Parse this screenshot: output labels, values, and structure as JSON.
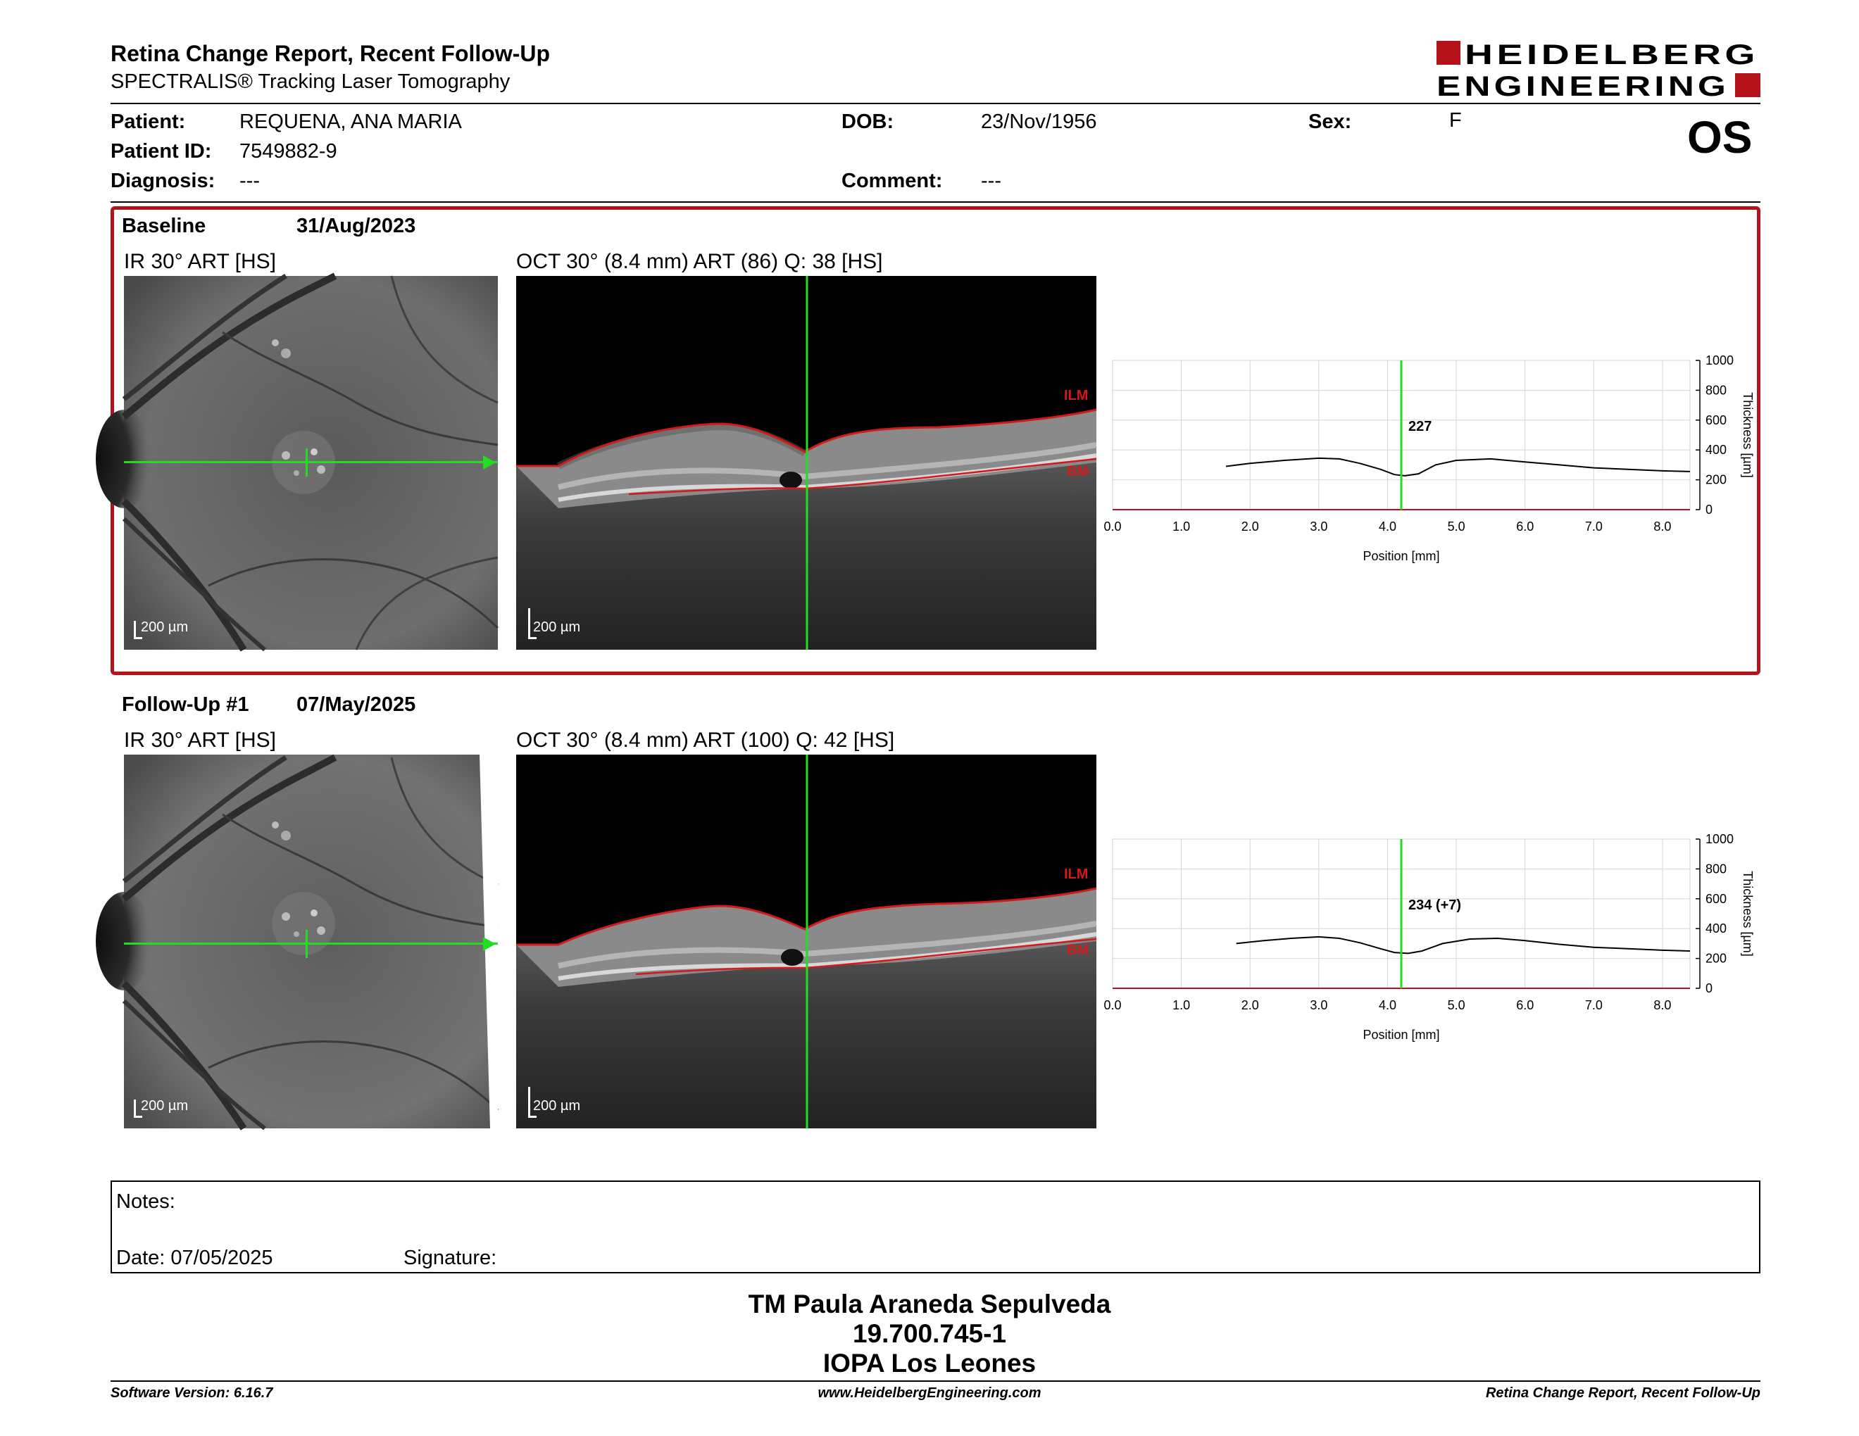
{
  "header": {
    "title": "Retina Change Report, Recent Follow-Up",
    "subtitle": "SPECTRALIS® Tracking Laser Tomography",
    "logo_line1": "HEIDELBERG",
    "logo_line2": "ENGINEERING",
    "eye": "OS"
  },
  "patient": {
    "patient_label": "Patient:",
    "patient_value": "REQUENA, ANA MARIA",
    "id_label": "Patient ID:",
    "id_value": "7549882-9",
    "diagnosis_label": "Diagnosis:",
    "diagnosis_value": "---",
    "dob_label": "DOB:",
    "dob_value": "23/Nov/1956",
    "comment_label": "Comment:",
    "comment_value": "---",
    "sex_label": "Sex:",
    "sex_value": "F"
  },
  "baseline": {
    "name": "Baseline",
    "date": "31/Aug/2023",
    "ir_label": "IR 30° ART [HS]",
    "oct_label": "OCT 30° (8.4 mm) ART (86) Q: 38 [HS]",
    "ir_scale": "200 µm",
    "oct_scale": "200 µm",
    "ilm_label": "ILM",
    "bm_label": "BM",
    "thickness_label": "227"
  },
  "followup": {
    "name": "Follow-Up #1",
    "date": "07/May/2025",
    "ir_label": "IR 30° ART [HS]",
    "oct_label": "OCT 30° (8.4 mm) ART (100) Q: 42 [HS]",
    "ir_scale": "200 µm",
    "oct_scale": "200 µm",
    "ilm_label": "ILM",
    "bm_label": "BM",
    "thickness_label": "234 (+7)"
  },
  "chart_data": [
    {
      "type": "line",
      "title": "",
      "xlabel": "Position [mm]",
      "ylabel": "Thickness [µm]",
      "xlim": [
        0,
        8.4
      ],
      "ylim": [
        0,
        1000
      ],
      "xticks": [
        "0.0",
        "1.0",
        "2.0",
        "3.0",
        "4.0",
        "5.0",
        "6.0",
        "7.0",
        "8.0"
      ],
      "yticks": [
        "0",
        "200",
        "400",
        "600",
        "800",
        "1000"
      ],
      "marker_x": 4.2,
      "marker_label": "227",
      "grid": true,
      "x": [
        1.65,
        2.0,
        2.5,
        3.0,
        3.3,
        3.6,
        3.9,
        4.1,
        4.25,
        4.45,
        4.7,
        5.0,
        5.5,
        6.0,
        6.5,
        7.0,
        7.5,
        8.0,
        8.4
      ],
      "y": [
        290,
        310,
        330,
        345,
        340,
        310,
        270,
        235,
        227,
        240,
        300,
        330,
        340,
        320,
        300,
        280,
        270,
        260,
        255
      ]
    },
    {
      "type": "line",
      "title": "",
      "xlabel": "Position [mm]",
      "ylabel": "Thickness [µm]",
      "xlim": [
        0,
        8.4
      ],
      "ylim": [
        0,
        1000
      ],
      "xticks": [
        "0.0",
        "1.0",
        "2.0",
        "3.0",
        "4.0",
        "5.0",
        "6.0",
        "7.0",
        "8.0"
      ],
      "yticks": [
        "0",
        "200",
        "400",
        "600",
        "800",
        "1000"
      ],
      "marker_x": 4.2,
      "marker_label": "234 (+7)",
      "grid": true,
      "x": [
        1.8,
        2.2,
        2.6,
        3.0,
        3.3,
        3.6,
        3.9,
        4.1,
        4.3,
        4.5,
        4.8,
        5.2,
        5.6,
        6.0,
        6.5,
        7.0,
        7.5,
        8.0,
        8.4
      ],
      "y": [
        300,
        320,
        335,
        345,
        335,
        305,
        265,
        240,
        234,
        250,
        300,
        330,
        335,
        320,
        295,
        275,
        265,
        255,
        250
      ]
    }
  ],
  "notes": {
    "notes_label": "Notes:",
    "date_label": "Date: 07/05/2025",
    "signature_label": "Signature:"
  },
  "signatory": {
    "name": "TM Paula Araneda Sepulveda",
    "id": "19.700.745-1",
    "institution": "IOPA Los Leones"
  },
  "footer": {
    "left": "Software Version: 6.16.7",
    "center": "www.HeidelbergEngineering.com",
    "right": "Retina Change Report, Recent Follow-Up"
  },
  "colors": {
    "accent_red": "#b5121b",
    "scan_green": "#22dd22",
    "layer_red": "#d21a1a"
  }
}
